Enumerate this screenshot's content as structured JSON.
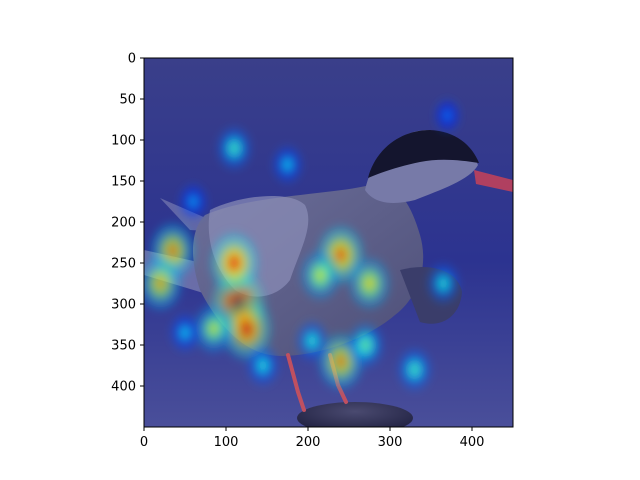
{
  "chart_data": {
    "type": "heatmap",
    "title": "",
    "xlabel": "",
    "ylabel": "",
    "xlim": [
      0,
      450
    ],
    "ylim": [
      450,
      0
    ],
    "x_ticks": [
      0,
      100,
      200,
      300,
      400
    ],
    "y_ticks": [
      0,
      50,
      100,
      150,
      200,
      250,
      300,
      350,
      400
    ],
    "x_tick_labels": [
      "0",
      "100",
      "200",
      "300",
      "400"
    ],
    "y_tick_labels": [
      "0",
      "50",
      "100",
      "150",
      "200",
      "250",
      "300",
      "350",
      "400"
    ],
    "grid": false,
    "colormap": "jet",
    "background_image": "bird-tern-photo",
    "hotspots": [
      {
        "x": 115,
        "y": 300,
        "intensity": 1.0
      },
      {
        "x": 110,
        "y": 250,
        "intensity": 0.85
      },
      {
        "x": 125,
        "y": 330,
        "intensity": 0.9
      },
      {
        "x": 35,
        "y": 235,
        "intensity": 0.75
      },
      {
        "x": 20,
        "y": 275,
        "intensity": 0.7
      },
      {
        "x": 85,
        "y": 330,
        "intensity": 0.6
      },
      {
        "x": 240,
        "y": 240,
        "intensity": 0.8
      },
      {
        "x": 215,
        "y": 265,
        "intensity": 0.6
      },
      {
        "x": 275,
        "y": 275,
        "intensity": 0.65
      },
      {
        "x": 240,
        "y": 370,
        "intensity": 0.75
      },
      {
        "x": 270,
        "y": 350,
        "intensity": 0.5
      },
      {
        "x": 330,
        "y": 380,
        "intensity": 0.45
      },
      {
        "x": 110,
        "y": 110,
        "intensity": 0.45
      },
      {
        "x": 175,
        "y": 130,
        "intensity": 0.35
      },
      {
        "x": 365,
        "y": 275,
        "intensity": 0.4
      },
      {
        "x": 50,
        "y": 335,
        "intensity": 0.35
      },
      {
        "x": 145,
        "y": 375,
        "intensity": 0.4
      },
      {
        "x": 205,
        "y": 345,
        "intensity": 0.4
      },
      {
        "x": 370,
        "y": 70,
        "intensity": 0.25
      },
      {
        "x": 60,
        "y": 175,
        "intensity": 0.3
      }
    ]
  }
}
